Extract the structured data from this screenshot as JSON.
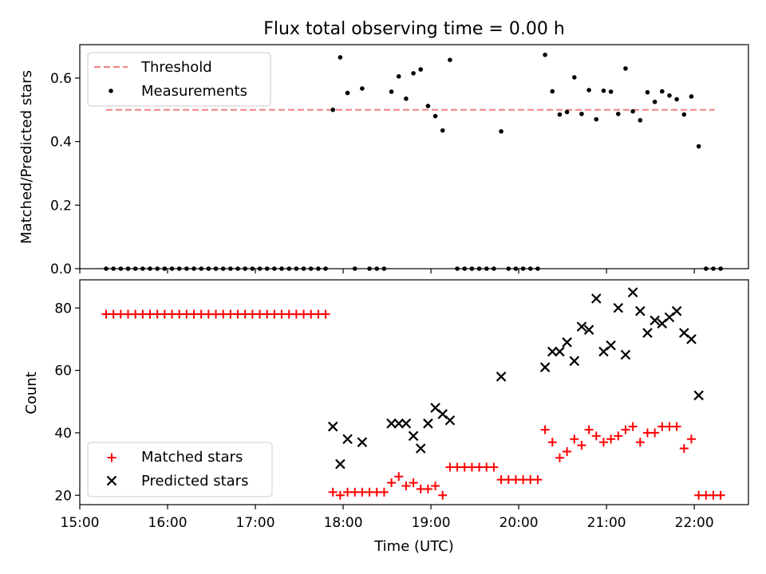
{
  "chart_data": [
    {
      "type": "scatter",
      "title": "Flux total observing time = 0.00 h",
      "xlabel": "",
      "ylabel": "Matched/Predicted stars",
      "ylim": [
        0,
        0.705
      ],
      "yticks": [
        "0.0",
        "0.2",
        "0.4",
        "0.6"
      ],
      "xlim": [
        "15:00",
        "22:37"
      ],
      "legend_position": "top-left",
      "threshold": {
        "name": "Threshold",
        "value": 0.5,
        "x_range": [
          "15:18",
          "22:14"
        ],
        "color": "#f08080"
      },
      "series": [
        {
          "name": "Measurements",
          "color": "#000000",
          "points": [
            [
              "15:18",
              0
            ],
            [
              "15:23",
              0
            ],
            [
              "15:28",
              0
            ],
            [
              "15:33",
              0
            ],
            [
              "15:38",
              0
            ],
            [
              "15:43",
              0
            ],
            [
              "15:48",
              0
            ],
            [
              "15:53",
              0
            ],
            [
              "15:58",
              0
            ],
            [
              "16:03",
              0
            ],
            [
              "16:08",
              0
            ],
            [
              "16:13",
              0
            ],
            [
              "16:18",
              0
            ],
            [
              "16:23",
              0
            ],
            [
              "16:28",
              0
            ],
            [
              "16:33",
              0
            ],
            [
              "16:38",
              0
            ],
            [
              "16:43",
              0
            ],
            [
              "16:48",
              0
            ],
            [
              "16:53",
              0
            ],
            [
              "16:58",
              0
            ],
            [
              "17:03",
              0
            ],
            [
              "17:08",
              0
            ],
            [
              "17:13",
              0
            ],
            [
              "17:18",
              0
            ],
            [
              "17:23",
              0
            ],
            [
              "17:28",
              0
            ],
            [
              "17:33",
              0
            ],
            [
              "17:38",
              0
            ],
            [
              "17:43",
              0
            ],
            [
              "17:48",
              0
            ],
            [
              "17:53",
              0.5
            ],
            [
              "17:58",
              0.665
            ],
            [
              "18:03",
              0.553
            ],
            [
              "18:08",
              0
            ],
            [
              "18:13",
              0.567
            ],
            [
              "18:18",
              0
            ],
            [
              "18:23",
              0
            ],
            [
              "18:28",
              0
            ],
            [
              "18:33",
              0.557
            ],
            [
              "18:38",
              0.605
            ],
            [
              "18:43",
              0.535
            ],
            [
              "18:48",
              0.615
            ],
            [
              "18:53",
              0.627
            ],
            [
              "18:58",
              0.512
            ],
            [
              "19:03",
              0.48
            ],
            [
              "19:08",
              0.435
            ],
            [
              "19:13",
              0.657
            ],
            [
              "19:18",
              0
            ],
            [
              "19:23",
              0
            ],
            [
              "19:28",
              0
            ],
            [
              "19:33",
              0
            ],
            [
              "19:38",
              0
            ],
            [
              "19:43",
              0
            ],
            [
              "19:48",
              0.432
            ],
            [
              "19:53",
              0
            ],
            [
              "19:58",
              0
            ],
            [
              "20:03",
              0
            ],
            [
              "20:08",
              0
            ],
            [
              "20:13",
              0
            ],
            [
              "20:18",
              0.673
            ],
            [
              "20:23",
              0.558
            ],
            [
              "20:28",
              0.485
            ],
            [
              "20:33",
              0.493
            ],
            [
              "20:38",
              0.602
            ],
            [
              "20:43",
              0.487
            ],
            [
              "20:48",
              0.562
            ],
            [
              "20:53",
              0.47
            ],
            [
              "20:58",
              0.56
            ],
            [
              "21:03",
              0.557
            ],
            [
              "21:08",
              0.487
            ],
            [
              "21:13",
              0.63
            ],
            [
              "21:18",
              0.495
            ],
            [
              "21:23",
              0.467
            ],
            [
              "21:28",
              0.555
            ],
            [
              "21:33",
              0.525
            ],
            [
              "21:38",
              0.558
            ],
            [
              "21:43",
              0.545
            ],
            [
              "21:48",
              0.533
            ],
            [
              "21:53",
              0.485
            ],
            [
              "21:58",
              0.542
            ],
            [
              "22:03",
              0.385
            ],
            [
              "22:08",
              0
            ],
            [
              "22:13",
              0
            ],
            [
              "22:18",
              0
            ]
          ]
        }
      ]
    },
    {
      "type": "scatter",
      "title": "",
      "xlabel": "Time (UTC)",
      "ylabel": "Count",
      "ylim": [
        17,
        89
      ],
      "yticks": [
        "20",
        "40",
        "60",
        "80"
      ],
      "xlim": [
        "15:00",
        "22:37"
      ],
      "xticks": [
        "15:00",
        "16:00",
        "17:00",
        "18:00",
        "19:00",
        "20:00",
        "21:00",
        "22:00"
      ],
      "legend_position": "bottom-left",
      "series": [
        {
          "name": "Matched stars",
          "marker": "plus",
          "color": "#ff0000",
          "points": [
            [
              "15:18",
              78
            ],
            [
              "15:23",
              78
            ],
            [
              "15:28",
              78
            ],
            [
              "15:33",
              78
            ],
            [
              "15:38",
              78
            ],
            [
              "15:43",
              78
            ],
            [
              "15:48",
              78
            ],
            [
              "15:53",
              78
            ],
            [
              "15:58",
              78
            ],
            [
              "16:03",
              78
            ],
            [
              "16:08",
              78
            ],
            [
              "16:13",
              78
            ],
            [
              "16:18",
              78
            ],
            [
              "16:23",
              78
            ],
            [
              "16:28",
              78
            ],
            [
              "16:33",
              78
            ],
            [
              "16:38",
              78
            ],
            [
              "16:43",
              78
            ],
            [
              "16:48",
              78
            ],
            [
              "16:53",
              78
            ],
            [
              "16:58",
              78
            ],
            [
              "17:03",
              78
            ],
            [
              "17:08",
              78
            ],
            [
              "17:13",
              78
            ],
            [
              "17:18",
              78
            ],
            [
              "17:23",
              78
            ],
            [
              "17:28",
              78
            ],
            [
              "17:33",
              78
            ],
            [
              "17:38",
              78
            ],
            [
              "17:43",
              78
            ],
            [
              "17:48",
              78
            ],
            [
              "17:53",
              21
            ],
            [
              "17:58",
              20
            ],
            [
              "18:03",
              21
            ],
            [
              "18:08",
              21
            ],
            [
              "18:13",
              21
            ],
            [
              "18:18",
              21
            ],
            [
              "18:23",
              21
            ],
            [
              "18:28",
              21
            ],
            [
              "18:33",
              24
            ],
            [
              "18:38",
              26
            ],
            [
              "18:43",
              23
            ],
            [
              "18:48",
              24
            ],
            [
              "18:53",
              22
            ],
            [
              "18:58",
              22
            ],
            [
              "19:03",
              23
            ],
            [
              "19:08",
              20
            ],
            [
              "19:13",
              29
            ],
            [
              "19:18",
              29
            ],
            [
              "19:23",
              29
            ],
            [
              "19:28",
              29
            ],
            [
              "19:33",
              29
            ],
            [
              "19:38",
              29
            ],
            [
              "19:43",
              29
            ],
            [
              "19:48",
              25
            ],
            [
              "19:53",
              25
            ],
            [
              "19:58",
              25
            ],
            [
              "20:03",
              25
            ],
            [
              "20:08",
              25
            ],
            [
              "20:13",
              25
            ],
            [
              "20:18",
              41
            ],
            [
              "20:23",
              37
            ],
            [
              "20:28",
              32
            ],
            [
              "20:33",
              34
            ],
            [
              "20:38",
              38
            ],
            [
              "20:43",
              36
            ],
            [
              "20:48",
              41
            ],
            [
              "20:53",
              39
            ],
            [
              "20:58",
              37
            ],
            [
              "21:03",
              38
            ],
            [
              "21:08",
              39
            ],
            [
              "21:13",
              41
            ],
            [
              "21:18",
              42
            ],
            [
              "21:23",
              37
            ],
            [
              "21:28",
              40
            ],
            [
              "21:33",
              40
            ],
            [
              "21:38",
              42
            ],
            [
              "21:43",
              42
            ],
            [
              "21:48",
              42
            ],
            [
              "21:53",
              35
            ],
            [
              "21:58",
              38
            ],
            [
              "22:03",
              20
            ],
            [
              "22:08",
              20
            ],
            [
              "22:13",
              20
            ],
            [
              "22:18",
              20
            ]
          ]
        },
        {
          "name": "Predicted stars",
          "marker": "x",
          "color": "#000000",
          "points": [
            [
              "17:53",
              42
            ],
            [
              "17:58",
              30
            ],
            [
              "18:03",
              38
            ],
            [
              "18:13",
              37
            ],
            [
              "18:33",
              43
            ],
            [
              "18:38",
              43
            ],
            [
              "18:43",
              43
            ],
            [
              "18:48",
              39
            ],
            [
              "18:53",
              35
            ],
            [
              "18:58",
              43
            ],
            [
              "19:03",
              48
            ],
            [
              "19:08",
              46
            ],
            [
              "19:13",
              44
            ],
            [
              "19:48",
              58
            ],
            [
              "20:18",
              61
            ],
            [
              "20:23",
              66
            ],
            [
              "20:28",
              66
            ],
            [
              "20:33",
              69
            ],
            [
              "20:38",
              63
            ],
            [
              "20:43",
              74
            ],
            [
              "20:48",
              73
            ],
            [
              "20:53",
              83
            ],
            [
              "20:58",
              66
            ],
            [
              "21:03",
              68
            ],
            [
              "21:08",
              80
            ],
            [
              "21:13",
              65
            ],
            [
              "21:18",
              85
            ],
            [
              "21:23",
              79
            ],
            [
              "21:28",
              72
            ],
            [
              "21:33",
              76
            ],
            [
              "21:38",
              75
            ],
            [
              "21:43",
              77
            ],
            [
              "21:48",
              79
            ],
            [
              "21:53",
              72
            ],
            [
              "21:58",
              70
            ],
            [
              "22:03",
              52
            ]
          ]
        }
      ]
    }
  ]
}
